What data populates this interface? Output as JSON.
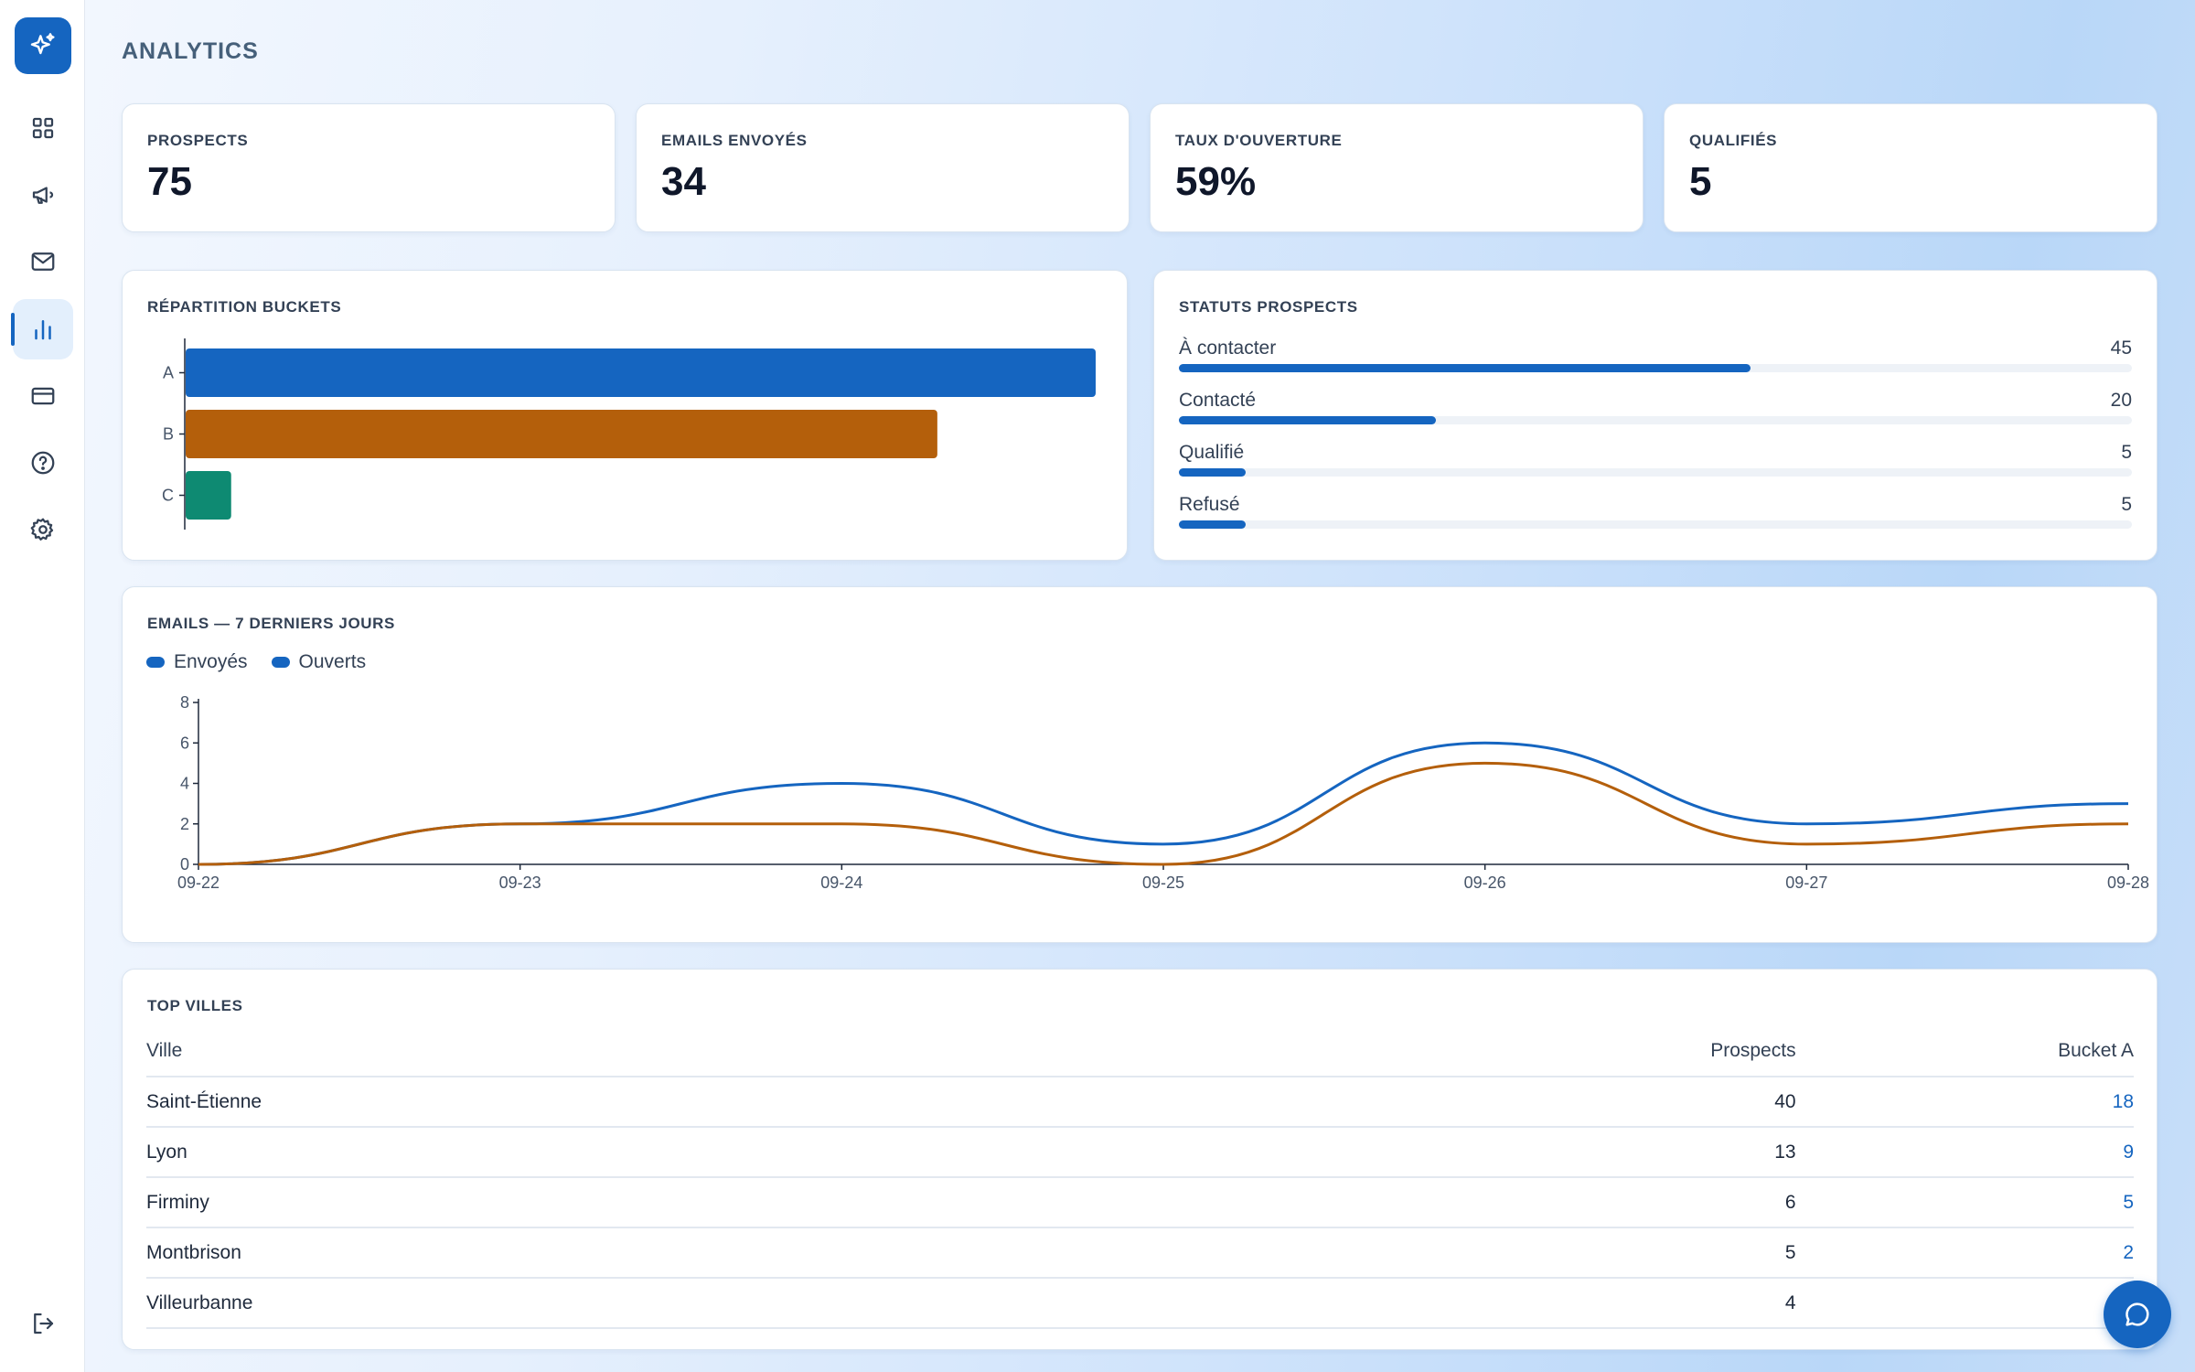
{
  "page": {
    "title": "ANALYTICS"
  },
  "sidebar": {
    "items": [
      {
        "icon": "grid-icon"
      },
      {
        "icon": "megaphone-icon"
      },
      {
        "icon": "mail-icon"
      },
      {
        "icon": "bar-chart-icon",
        "active": true
      },
      {
        "icon": "credit-card-icon"
      },
      {
        "icon": "help-circle-icon"
      },
      {
        "icon": "gear-icon"
      }
    ],
    "logout_icon": "logout-icon"
  },
  "kpis": [
    {
      "label": "PROSPECTS",
      "value": "75"
    },
    {
      "label": "EMAILS ENVOYÉS",
      "value": "34"
    },
    {
      "label": "TAUX D'OUVERTURE",
      "value": "59%"
    },
    {
      "label": "QUALIFIÉS",
      "value": "5"
    }
  ],
  "buckets_card": {
    "title": "RÉPARTITION BUCKETS"
  },
  "statuses_card": {
    "title": "STATUTS PROSPECTS",
    "items": [
      {
        "name": "À contacter",
        "count": "45",
        "fraction": 0.6
      },
      {
        "name": "Contacté",
        "count": "20",
        "fraction": 0.27
      },
      {
        "name": "Qualifié",
        "count": "5",
        "fraction": 0.07
      },
      {
        "name": "Refusé",
        "count": "5",
        "fraction": 0.07
      }
    ]
  },
  "emails_card": {
    "title": "EMAILS — 7 DERNIERS JOURS",
    "legend": [
      "Envoyés",
      "Ouverts"
    ]
  },
  "cities_card": {
    "title": "TOP VILLES",
    "columns": [
      "Ville",
      "Prospects",
      "Bucket A"
    ],
    "rows": [
      [
        "Saint-Étienne",
        "40",
        "18"
      ],
      [
        "Lyon",
        "13",
        "9"
      ],
      [
        "Firminy",
        "6",
        "5"
      ],
      [
        "Montbrison",
        "5",
        "2"
      ],
      [
        "Villeurbanne",
        "4",
        ""
      ]
    ]
  },
  "colors": {
    "primary": "#1565c0",
    "orange": "#b45f0b",
    "teal": "#0e8a72"
  },
  "chart_data": [
    {
      "type": "bar",
      "orientation": "horizontal",
      "categories": [
        "A",
        "B",
        "C"
      ],
      "values": [
        50,
        41.3,
        2.5
      ],
      "colors": [
        "#1565c0",
        "#b45f0b",
        "#0e8a72"
      ],
      "grid": false
    },
    {
      "type": "line",
      "x": [
        "09-22",
        "09-23",
        "09-24",
        "09-25",
        "09-26",
        "09-27",
        "09-28"
      ],
      "series": [
        {
          "name": "Envoyés",
          "values": [
            0,
            2,
            4,
            1,
            6,
            2,
            3
          ],
          "color": "#1565c0"
        },
        {
          "name": "Ouverts",
          "values": [
            0,
            2,
            2,
            0,
            5,
            1,
            2
          ],
          "color": "#b45f0b"
        }
      ],
      "ylim": [
        0,
        8
      ],
      "yticks": [
        0,
        2,
        4,
        6,
        8
      ],
      "grid": false
    }
  ]
}
